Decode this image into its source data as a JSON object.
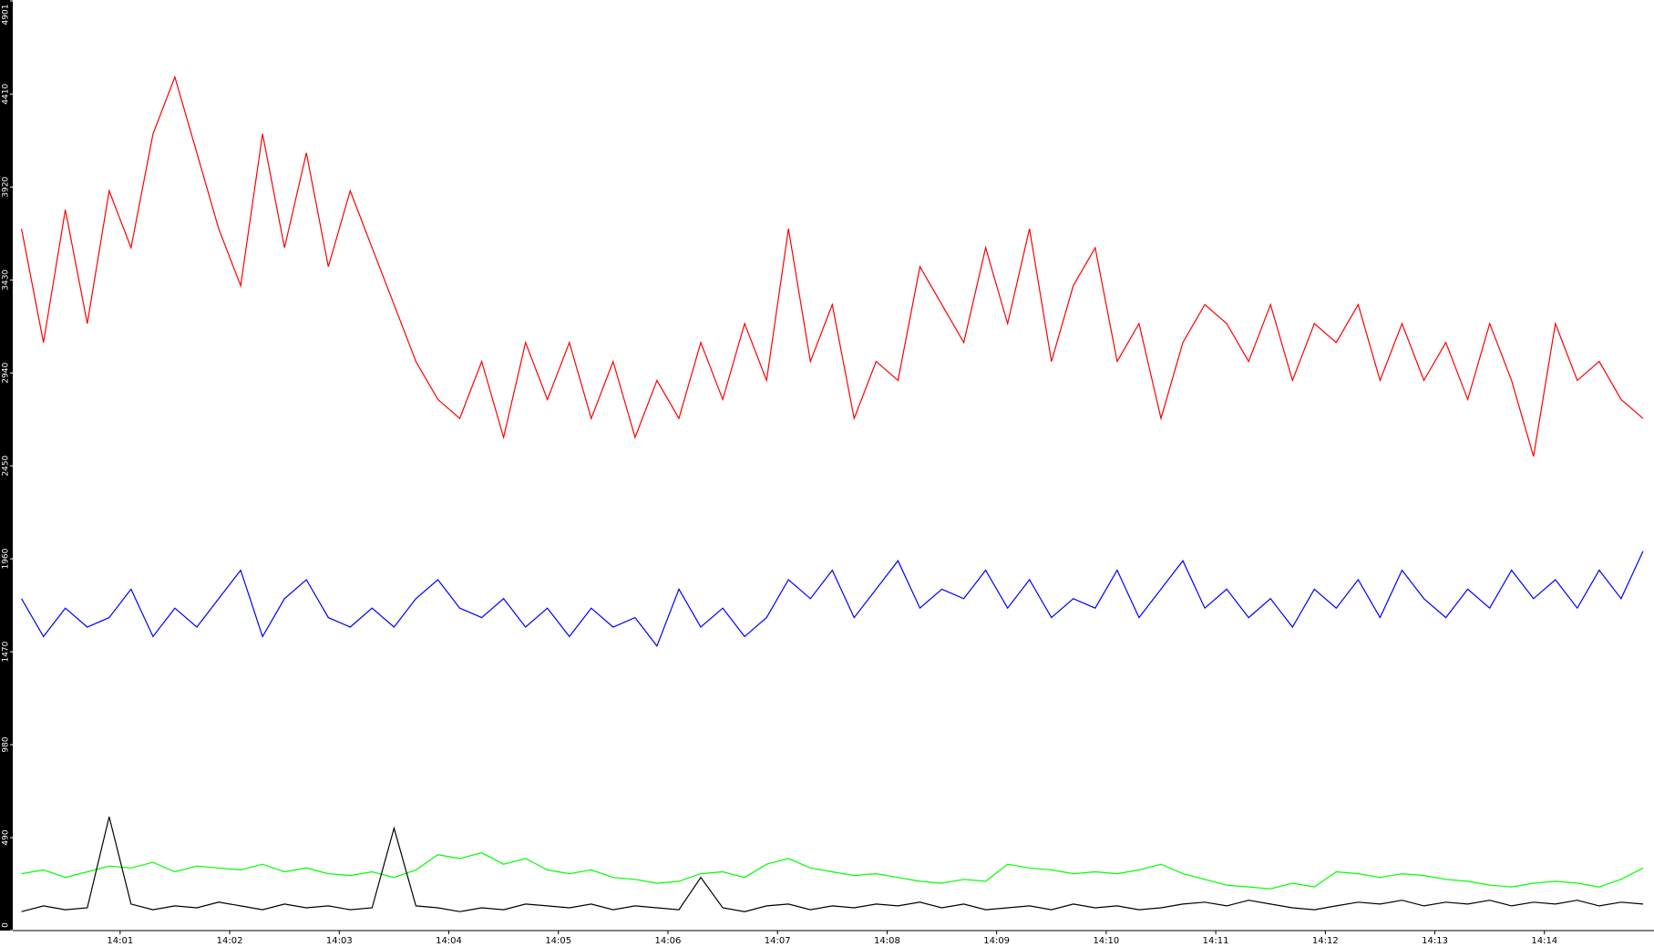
{
  "chart_data": {
    "type": "line",
    "x": [
      840.1,
      840.3,
      840.5,
      840.7,
      840.9,
      841.1,
      841.3,
      841.5,
      841.7,
      841.9,
      842.1,
      842.3,
      842.5,
      842.7,
      842.9,
      843.1,
      843.3,
      843.5,
      843.7,
      843.9,
      844.1,
      844.3,
      844.5,
      844.7,
      844.9,
      845.1,
      845.3,
      845.5,
      845.7,
      845.9,
      846.1,
      846.3,
      846.5,
      846.7,
      846.9,
      847.1,
      847.3,
      847.5,
      847.7,
      847.9,
      848.1,
      848.3,
      848.5,
      848.7,
      848.9,
      849.1,
      849.3,
      849.5,
      849.7,
      849.9,
      850.1,
      850.3,
      850.5,
      850.7,
      850.9,
      851.1,
      851.3,
      851.5,
      851.7,
      851.9,
      852.1,
      852.3,
      852.5,
      852.7,
      852.9,
      853.1,
      853.3,
      853.5,
      853.7,
      853.9,
      854.1,
      854.3,
      854.5,
      854.7,
      854.9
    ],
    "series": [
      {
        "color": "#ff0000",
        "values": [
          3700,
          3100,
          3800,
          3200,
          3900,
          3600,
          4200,
          4500,
          4100,
          3700,
          3400,
          4200,
          3600,
          4100,
          3500,
          3900,
          3600,
          3300,
          3000,
          2800,
          2700,
          3000,
          2600,
          3100,
          2800,
          3100,
          2700,
          3000,
          2600,
          2900,
          2700,
          3100,
          2800,
          3200,
          2900,
          3700,
          3000,
          3300,
          2700,
          3000,
          2900,
          3500,
          3300,
          3100,
          3600,
          3200,
          3700,
          3000,
          3400,
          3600,
          3000,
          3200,
          2700,
          3100,
          3300,
          3200,
          3000,
          3300,
          2900,
          3200,
          3100,
          3300,
          2900,
          3200,
          2900,
          3100,
          2800,
          3200,
          2900,
          2500,
          3200,
          2900,
          3000,
          2800,
          2700
        ]
      },
      {
        "color": "#0000ff",
        "values": [
          1750,
          1550,
          1700,
          1600,
          1650,
          1800,
          1550,
          1700,
          1600,
          1750,
          1900,
          1550,
          1750,
          1850,
          1650,
          1600,
          1700,
          1600,
          1750,
          1850,
          1700,
          1650,
          1750,
          1600,
          1700,
          1550,
          1700,
          1600,
          1650,
          1500,
          1800,
          1600,
          1700,
          1550,
          1650,
          1850,
          1750,
          1900,
          1650,
          1800,
          1950,
          1700,
          1800,
          1750,
          1900,
          1700,
          1850,
          1650,
          1750,
          1700,
          1900,
          1650,
          1800,
          1950,
          1700,
          1800,
          1650,
          1750,
          1600,
          1800,
          1700,
          1850,
          1650,
          1900,
          1750,
          1650,
          1800,
          1700,
          1900,
          1750,
          1850,
          1700,
          1900,
          1750,
          2000
        ]
      },
      {
        "color": "#00ff00",
        "values": [
          300,
          320,
          280,
          310,
          340,
          330,
          360,
          310,
          340,
          330,
          320,
          350,
          310,
          330,
          300,
          290,
          310,
          280,
          320,
          400,
          380,
          410,
          350,
          380,
          320,
          300,
          320,
          280,
          270,
          250,
          260,
          300,
          310,
          280,
          350,
          380,
          330,
          310,
          290,
          300,
          280,
          260,
          250,
          270,
          260,
          350,
          330,
          320,
          300,
          310,
          300,
          320,
          350,
          300,
          270,
          240,
          230,
          220,
          250,
          230,
          310,
          300,
          280,
          300,
          290,
          270,
          260,
          240,
          230,
          250,
          260,
          250,
          230,
          270,
          330
        ]
      },
      {
        "color": "#000000",
        "values": [
          100,
          130,
          110,
          120,
          600,
          140,
          110,
          130,
          120,
          150,
          130,
          110,
          140,
          120,
          130,
          110,
          120,
          540,
          130,
          120,
          100,
          120,
          110,
          140,
          130,
          120,
          140,
          110,
          130,
          120,
          110,
          280,
          120,
          100,
          130,
          140,
          110,
          130,
          120,
          140,
          130,
          150,
          120,
          140,
          110,
          120,
          130,
          110,
          140,
          120,
          130,
          110,
          120,
          140,
          150,
          130,
          160,
          140,
          120,
          110,
          130,
          150,
          140,
          160,
          130,
          150,
          140,
          160,
          130,
          150,
          140,
          160,
          130,
          150,
          140
        ]
      }
    ],
    "xlim": [
      840.02,
      855.0
    ],
    "xticks": [
      {
        "value": 841,
        "label": "14:01"
      },
      {
        "value": 842,
        "label": "14:02"
      },
      {
        "value": 843,
        "label": "14:03"
      },
      {
        "value": 844,
        "label": "14:04"
      },
      {
        "value": 845,
        "label": "14:05"
      },
      {
        "value": 846,
        "label": "14:06"
      },
      {
        "value": 847,
        "label": "14:07"
      },
      {
        "value": 848,
        "label": "14:08"
      },
      {
        "value": 849,
        "label": "14:09"
      },
      {
        "value": 850,
        "label": "14:10"
      },
      {
        "value": 851,
        "label": "14:11"
      },
      {
        "value": 852,
        "label": "14:12"
      },
      {
        "value": 853,
        "label": "14:13"
      },
      {
        "value": 854,
        "label": "14:14"
      }
    ],
    "ylim": [
      0,
      4901
    ],
    "yticks": [
      0,
      490,
      980,
      1470,
      1960,
      2450,
      2940,
      3430,
      3920,
      4410,
      4901
    ]
  }
}
